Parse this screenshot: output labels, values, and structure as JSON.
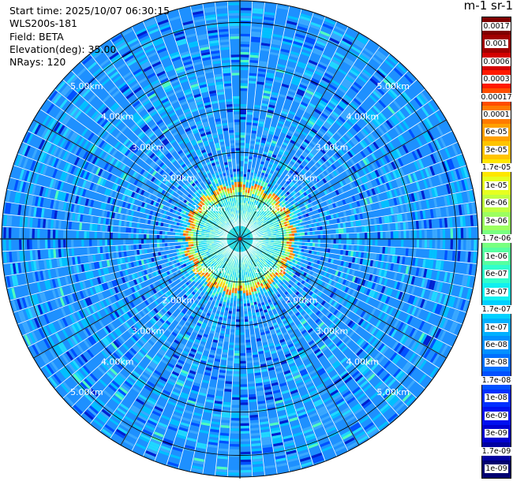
{
  "info": {
    "start_time": "Start time: 2025/10/07 06:30:15",
    "instrument": "WLS200s-181",
    "field": "Field: BETA",
    "elevation": "Elevation(deg): 35.00",
    "nrays": "NRays: 120"
  },
  "colorbar": {
    "units_label": "m-1 sr-1",
    "labels": [
      "0.0017",
      "0.001",
      "0.0006",
      "0.0003",
      "0.00017",
      "0.0001",
      "6e-05",
      "3e-05",
      "1.7e-05",
      "1e-05",
      "6e-06",
      "3e-06",
      "1.7e-06",
      "1e-06",
      "6e-07",
      "3e-07",
      "1.7e-07",
      "1e-07",
      "6e-08",
      "3e-08",
      "1.7e-08",
      "1e-08",
      "6e-09",
      "3e-09",
      "1.7e-09",
      "1e-09"
    ],
    "colors": [
      "#7f0000",
      "#a00000",
      "#d40000",
      "#ff1a00",
      "#ff4d00",
      "#ff7a00",
      "#ffa000",
      "#ffc400",
      "#ffe600",
      "#e6ff20",
      "#c0ff40",
      "#9cff60",
      "#78ff80",
      "#56ffa0",
      "#30ffcc",
      "#10f0f0",
      "#00d0ff",
      "#00b0ff",
      "#0090ff",
      "#0070ff",
      "#0050ff",
      "#0030ff",
      "#0010f0",
      "#0000d0",
      "#0000a0",
      "#000070"
    ]
  },
  "chart_data": {
    "type": "heatmap",
    "subtype": "polar PPI scan",
    "field": "BETA",
    "range_rings_km": [
      1,
      2,
      3,
      4,
      5
    ],
    "ring_labels": [
      "1.00km",
      "2.00km",
      "3.00km",
      "4.00km",
      "5.00km"
    ],
    "max_range_km": 5.5,
    "nrays": 120,
    "elevation_deg": 35.0,
    "aerosol_layer_edge_km": 1.2,
    "dominant_far_color_value": "3e-08",
    "color_scale": "log, 1e-09 to 0.0017"
  }
}
